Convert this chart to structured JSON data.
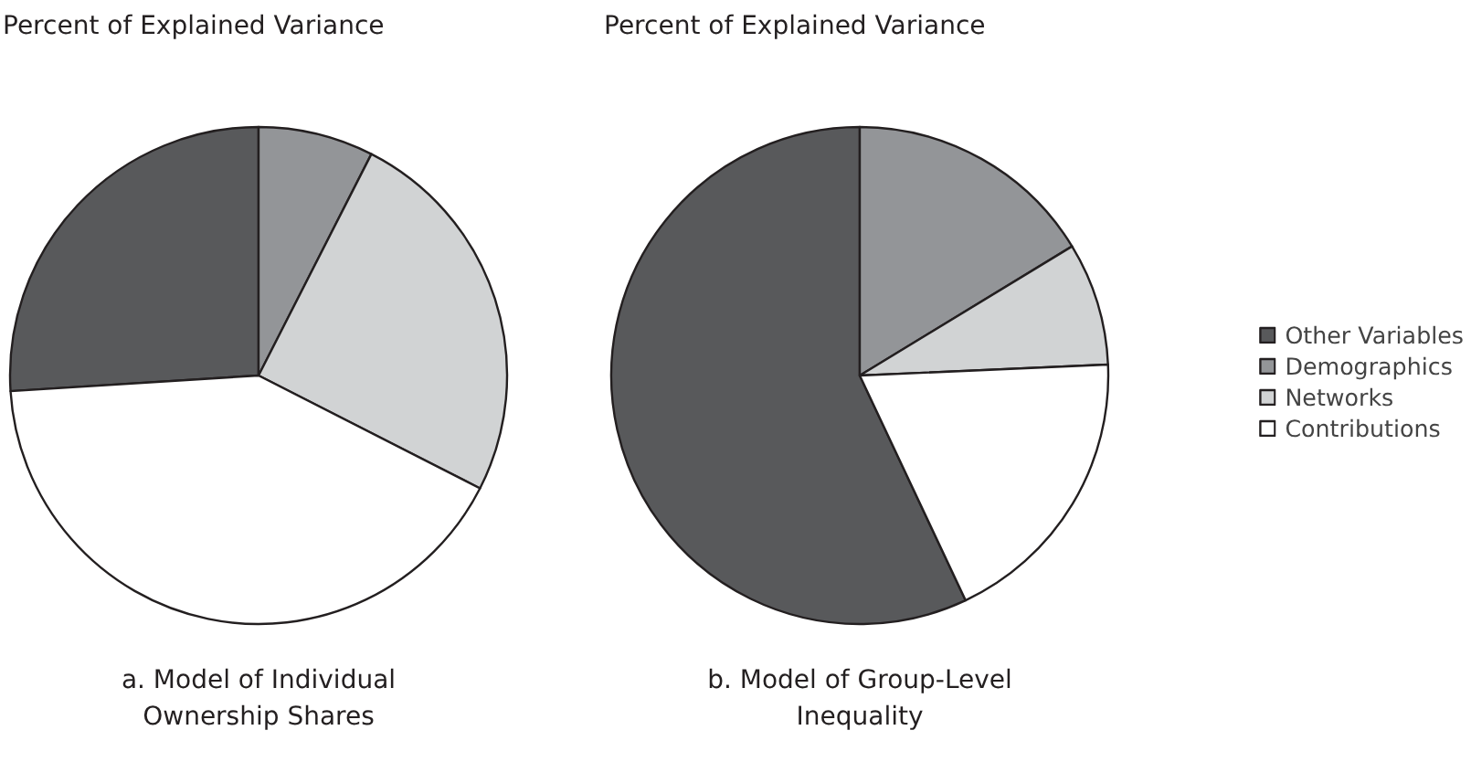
{
  "chart_data": [
    {
      "type": "pie",
      "title": "Percent of Explained Variance",
      "xlabel": "a. Model of Individual Ownership Shares",
      "categories": [
        "Other Variables",
        "Demographics",
        "Networks",
        "Contributions"
      ],
      "values": [
        26,
        7.5,
        25,
        41.5
      ],
      "colors": [
        "#58595b",
        "#939598",
        "#d1d3d4",
        "#ffffff"
      ],
      "legend": "right"
    },
    {
      "type": "pie",
      "title": "Percent of Explained Variance",
      "xlabel": "b. Model of Group-Level Inequality",
      "categories": [
        null,
        null,
        null,
        null
      ],
      "values": [
        57,
        16.3,
        8,
        18.7
      ],
      "colors": [
        "#58595b",
        "#939598",
        "#d1d3d4",
        "#ffffff"
      ]
    }
  ]
}
